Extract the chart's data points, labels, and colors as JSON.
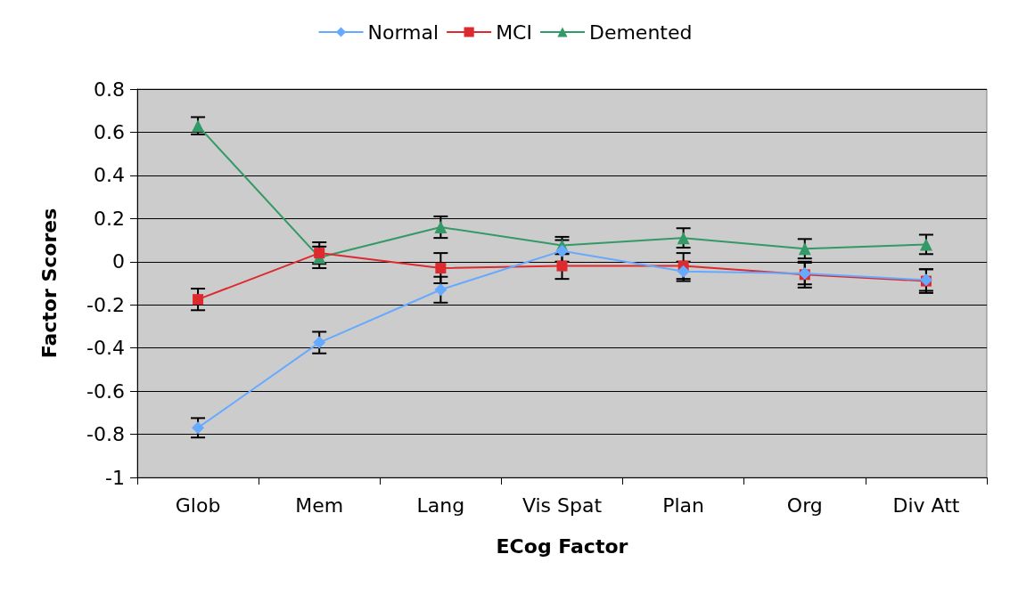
{
  "chart_data": {
    "type": "line",
    "xlabel": "ECog Factor",
    "ylabel": "Factor Scores",
    "categories": [
      "Glob",
      "Mem",
      "Lang",
      "Vis Spat",
      "Plan",
      "Org",
      "Div Att"
    ],
    "series": [
      {
        "name": "Normal",
        "color": "#66aaff",
        "marker": "diamond",
        "values": [
          -0.77,
          -0.375,
          -0.13,
          0.05,
          -0.045,
          -0.055,
          -0.085
        ],
        "errors": [
          0.045,
          0.05,
          0.06,
          0.05,
          0.045,
          0.05,
          0.05
        ]
      },
      {
        "name": "MCI",
        "color": "#dd2a2f",
        "marker": "square",
        "values": [
          -0.175,
          0.04,
          -0.03,
          -0.02,
          -0.02,
          -0.06,
          -0.09
        ],
        "errors": [
          0.05,
          0.05,
          0.07,
          0.06,
          0.06,
          0.06,
          0.055
        ]
      },
      {
        "name": "Demented",
        "color": "#339966",
        "marker": "triangle",
        "values": [
          0.63,
          0.02,
          0.16,
          0.075,
          0.11,
          0.06,
          0.08
        ],
        "errors": [
          0.04,
          0.05,
          0.05,
          0.04,
          0.045,
          0.045,
          0.045
        ]
      }
    ],
    "ylim": [
      -1,
      0.8
    ],
    "yticks": [
      -1,
      -0.8,
      -0.6,
      -0.4,
      -0.2,
      0,
      0.2,
      0.4,
      0.6,
      0.8
    ],
    "grid": "y",
    "legend": "top"
  }
}
